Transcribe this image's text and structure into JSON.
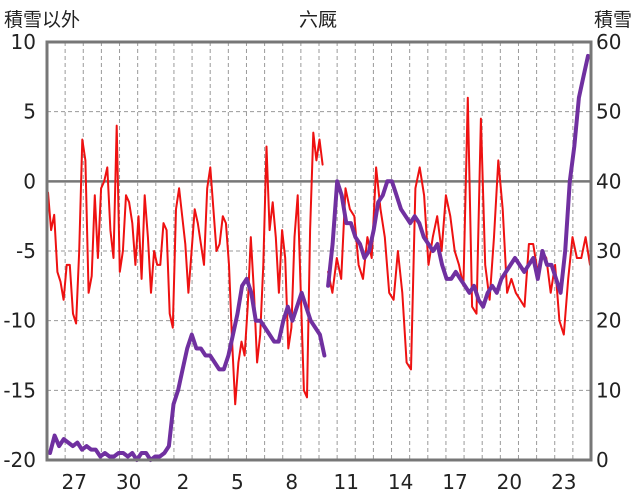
{
  "chart_data": {
    "type": "line",
    "title": "六厩",
    "left_axis_label": "積雪以外",
    "right_axis_label": "積雪",
    "y_left": {
      "min": -20,
      "max": 10,
      "ticks": [
        10,
        5,
        0,
        -5,
        -10,
        -15,
        -20
      ]
    },
    "y_right": {
      "min": 0,
      "max": 60,
      "ticks": [
        60,
        50,
        40,
        30,
        20,
        10,
        0
      ]
    },
    "x_labels": [
      "27",
      "30",
      "2",
      "5",
      "8",
      "11",
      "14",
      "17",
      "20",
      "23"
    ],
    "grid": true,
    "series": [
      {
        "axis": "left",
        "color": "#ee1111",
        "values": [
          -0.8,
          -3.5,
          -2.4,
          -6.5,
          -7.2,
          -8.5,
          -6,
          -6,
          -9.5,
          -10.2,
          -5,
          3,
          1.5,
          -8,
          -6.8,
          -1,
          -5.5,
          -0.5,
          0,
          1,
          -3.5,
          -5.5,
          4,
          -6.5,
          -5,
          -1,
          -1.5,
          -3,
          -6,
          -2.5,
          -7,
          -1,
          -4,
          -8,
          -5,
          -6,
          -6,
          -3,
          -3.5,
          -9.5,
          -10.5,
          -2,
          -0.5,
          -2.5,
          -4.5,
          -8,
          -5,
          -2,
          -3,
          -4.5,
          -6,
          -0.5,
          1,
          -2,
          -5,
          -4.5,
          -2.5,
          -3,
          -6,
          -11.5,
          -16,
          -13,
          -11.5,
          -12.5,
          -9,
          -4,
          -8,
          -13,
          -11,
          -6,
          2.5,
          -3.5,
          -1.5,
          -4,
          -8,
          -3.5,
          -5.5,
          -12,
          -10.5,
          -4,
          -1,
          -8,
          -15,
          -15.5,
          -3.5,
          3.5,
          1.5,
          3,
          1.2
        ],
        "gap_after": [
          87
        ],
        "segment2": [
          -6.5,
          -8,
          -5.5,
          -7,
          -0.5,
          -2,
          -2.5,
          -6,
          -7,
          -4,
          -5.5,
          1,
          -2,
          -4,
          -8,
          -8.5,
          -5,
          -8,
          -13,
          -13.5,
          -0.5,
          1,
          -1,
          -6,
          -4,
          -2.5,
          -5,
          -1,
          -2.5,
          -5,
          -6,
          -7.5,
          6,
          -9,
          -9.5,
          4.5,
          -6,
          -8.5,
          -4,
          1.5,
          -2,
          -8,
          -7,
          -8,
          -8.5,
          -9,
          -4.5,
          -4.5,
          -6.5,
          -5,
          -5.5,
          -8,
          -6,
          -10,
          -11,
          -7,
          -4,
          -5.5,
          -5.5,
          -4,
          -6
        ]
      },
      {
        "axis": "right",
        "color": "#7030a0",
        "values": [
          1,
          3.5,
          2,
          3,
          2.5,
          2,
          2.5,
          1.5,
          2,
          1.5,
          1.5,
          0.5,
          1,
          0.5,
          0.5,
          1,
          1,
          0.5,
          1,
          0,
          1,
          1,
          0,
          0.5,
          0.5,
          1,
          2,
          8,
          10,
          13,
          16,
          18,
          16,
          16,
          15,
          15,
          14,
          13,
          13,
          15,
          18,
          21,
          25,
          26,
          24,
          20,
          20,
          19,
          18,
          17,
          17,
          20,
          22,
          20,
          22,
          24,
          22,
          20,
          19,
          18,
          15
        ],
        "gap_after": [
          60
        ],
        "segment2": [
          25,
          31,
          40,
          38,
          34,
          34,
          32,
          31,
          29,
          30,
          33,
          37,
          38,
          40,
          40,
          38,
          36,
          35,
          34,
          35,
          34,
          32,
          31,
          30,
          31,
          28,
          26,
          26,
          27,
          26,
          25,
          24,
          25,
          23,
          22,
          24,
          25,
          24,
          26,
          27,
          28,
          29,
          28,
          27,
          28,
          29,
          26,
          30,
          28,
          28,
          26,
          24,
          30,
          40,
          45,
          52,
          55,
          58
        ]
      }
    ]
  }
}
